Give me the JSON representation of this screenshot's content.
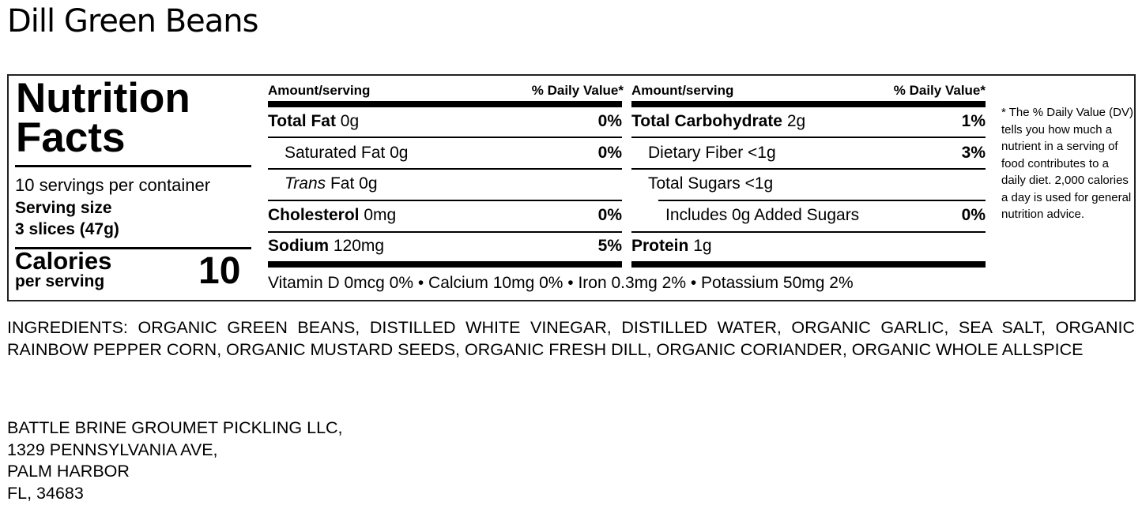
{
  "title": "Dill Green Beans",
  "label": {
    "heading": "Nutrition Facts",
    "servings_per_container": "10 servings per container",
    "serving_size_label": "Serving size",
    "serving_size_value": "3 slices (47g)",
    "calories_label": "Calories",
    "calories_sub": "per serving",
    "calories_value": "10",
    "col_header_amount": "Amount/serving",
    "col_header_dv": "% Daily Value*",
    "left_rows": [
      {
        "name": "Total Fat",
        "amount": "0g",
        "dv": "0%"
      },
      {
        "name": "Saturated Fat",
        "amount": "0g",
        "dv": "0%"
      },
      {
        "name": "Trans",
        "amount": "Fat 0g",
        "dv": ""
      },
      {
        "name": "Cholesterol",
        "amount": "0mg",
        "dv": "0%"
      },
      {
        "name": "Sodium",
        "amount": "120mg",
        "dv": "5%"
      }
    ],
    "right_rows": [
      {
        "name": "Total Carbohydrate",
        "amount": "2g",
        "dv": "1%"
      },
      {
        "name": "Dietary Fiber",
        "amount": "<1g",
        "dv": "3%"
      },
      {
        "name": "Total Sugars",
        "amount": "<1g",
        "dv": ""
      },
      {
        "name": "Includes 0g Added Sugars",
        "amount": "",
        "dv": "0%"
      },
      {
        "name": "Protein",
        "amount": "1g",
        "dv": ""
      }
    ],
    "vitamins": "Vitamin D 0mcg 0% • Calcium 10mg 0% • Iron 0.3mg 2% • Potassium 50mg 2%",
    "footnote": "* The % Daily Value (DV) tells you how much a nutrient in a serving of food contributes to a daily diet. 2,000 calories a day is used for general nutrition advice."
  },
  "ingredients": "INGREDIENTS: ORGANIC GREEN BEANS, DISTILLED WHITE VINEGAR, DISTILLED WATER, ORGANIC GARLIC, SEA SALT, ORGANIC RAINBOW PEPPER CORN, ORGANIC MUSTARD SEEDS, ORGANIC FRESH DILL, ORGANIC CORIANDER, ORGANIC WHOLE ALLSPICE",
  "address": [
    "BATTLE BRINE GROUMET PICKLING LLC,",
    "1329 PENNSYLVANIA AVE,",
    "PALM HARBOR",
    "FL, 34683"
  ]
}
